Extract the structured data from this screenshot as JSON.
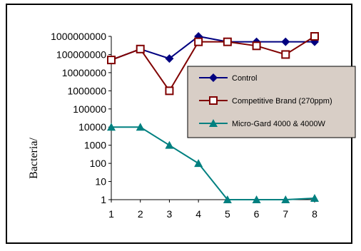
{
  "chart_data": {
    "type": "line",
    "ylabel": "Bacteria/",
    "xlabel": "",
    "title": "",
    "y_scale": "log",
    "ylim": [
      1,
      1000000000
    ],
    "x": [
      1,
      2,
      3,
      4,
      5,
      6,
      7,
      8
    ],
    "x_tick_labels": [
      "1",
      "2",
      "3",
      "4",
      "5",
      "6",
      "7",
      "8"
    ],
    "y_tick_labels": [
      "1000000000",
      "100000000",
      "10000000",
      "1000000",
      "100000",
      "10000",
      "1000",
      "100",
      "10",
      "1"
    ],
    "grid": false,
    "legend_position": "right",
    "series": [
      {
        "name": "Control",
        "color": "#000080",
        "marker": "diamond",
        "values": [
          50000000,
          200000000,
          60000000,
          1000000000,
          500000000,
          500000000,
          500000000,
          500000000
        ]
      },
      {
        "name": "Competitive Brand (270ppm)",
        "color": "#800000",
        "marker": "square-open",
        "values": [
          50000000,
          200000000,
          1000000,
          500000000,
          500000000,
          300000000,
          100000000,
          1000000000
        ]
      },
      {
        "name": "Micro-Gard 4000 & 4000W",
        "color": "#008080",
        "marker": "triangle",
        "values": [
          10000,
          10000,
          1000,
          100,
          1,
          1,
          1,
          1.2
        ]
      }
    ],
    "legend_background": "#D8CEC6"
  }
}
